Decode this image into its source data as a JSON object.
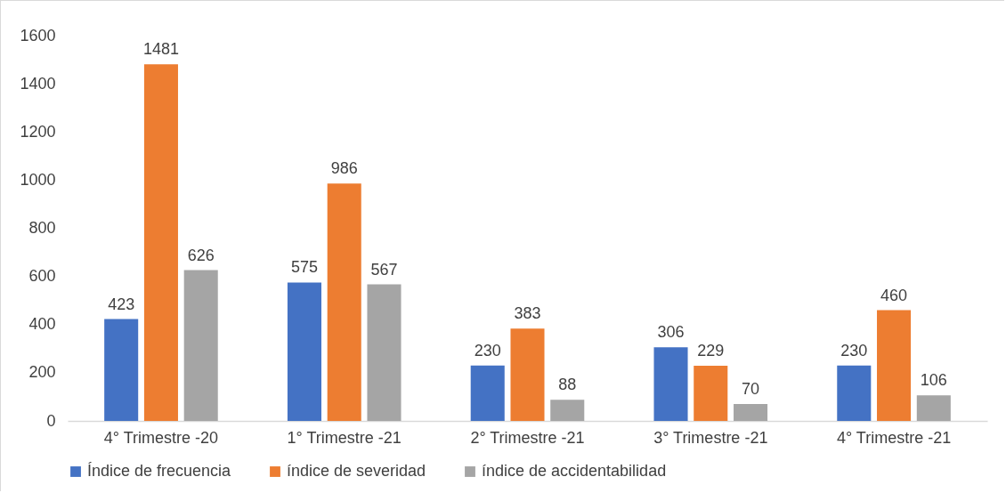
{
  "chart_data": {
    "type": "bar",
    "categories": [
      "4° Trimestre -20",
      "1° Trimestre -21",
      "2° Trimestre -21",
      "3° Trimestre -21",
      "4° Trimestre -21"
    ],
    "series": [
      {
        "name": "Índice de frecuencia",
        "color": "#4472c4",
        "values": [
          423,
          575,
          230,
          306,
          230
        ]
      },
      {
        "name": "índice de severidad",
        "color": "#ed7d31",
        "values": [
          1481,
          986,
          383,
          229,
          460
        ]
      },
      {
        "name": "índice de accidentabilidad",
        "color": "#a5a5a5",
        "values": [
          626,
          567,
          88,
          70,
          106
        ]
      }
    ],
    "ylim": [
      0,
      1600
    ],
    "yticks": [
      0,
      200,
      400,
      600,
      800,
      1000,
      1200,
      1400,
      1600
    ],
    "grid": false,
    "legend": "bottom",
    "data_labels": true
  }
}
